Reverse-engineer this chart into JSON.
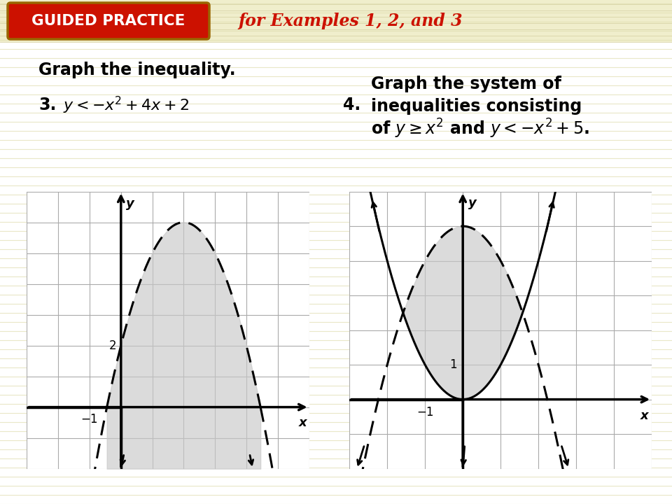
{
  "bg_color": "#f5f5d0",
  "header_color": "#f0eecc",
  "title_box_color": "#cc1100",
  "title_box_text": "GUIDED PRACTICE",
  "title_box_border_color": "#996600",
  "title_text_color": "#ffffff",
  "header_subtitle": "for Examples 1, 2, and 3",
  "header_subtitle_color": "#cc1100",
  "content_bg": "#ffffff",
  "main_title": "Graph the inequality.",
  "shade_color": "#c8c8c8",
  "shade_alpha": 0.65,
  "grid_color": "#aaaaaa",
  "graph1_xlim": [
    -3,
    6
  ],
  "graph1_ylim": [
    -3,
    7
  ],
  "graph2_xlim": [
    -4,
    5
  ],
  "graph2_ylim": [
    -3,
    6
  ]
}
